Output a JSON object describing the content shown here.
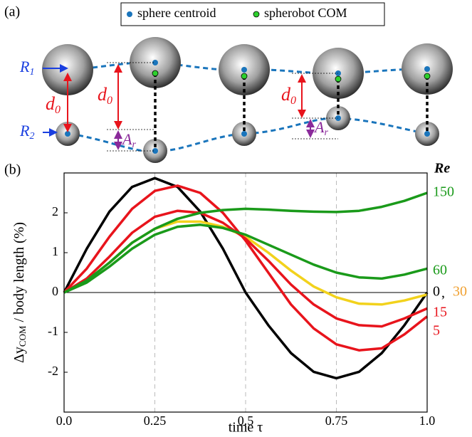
{
  "diagram": {
    "panel_label": "(a)",
    "legend": [
      "sphere centroid",
      "spherobot COM"
    ],
    "r1": {
      "text": "R",
      "sub": "1"
    },
    "r2": {
      "text": "R",
      "sub": "2"
    },
    "d0_left": {
      "text": "d",
      "sub": "0"
    },
    "d0_mid": {
      "text": "d",
      "sub": "0"
    },
    "d0_right": {
      "text": "d",
      "sub": "0"
    },
    "ar_left": {
      "text": "A",
      "sub": "r"
    },
    "ar_right": {
      "text": "A",
      "sub": "r"
    }
  },
  "chart_data": {
    "type": "line",
    "panel_label": "(b)",
    "x_label": "time  τ",
    "y_label": {
      "main": "Δy",
      "sub": "COM",
      "rest": " / body length (%)"
    },
    "legend_title": "Re",
    "label_separator": ",",
    "x": [
      0,
      0.0625,
      0.125,
      0.1875,
      0.25,
      0.3125,
      0.375,
      0.4375,
      0.5,
      0.5625,
      0.625,
      0.6875,
      0.75,
      0.8125,
      0.875,
      0.9375,
      1
    ],
    "series": [
      {
        "name": "0",
        "color": "#000000",
        "values": [
          0,
          1.1,
          2.03,
          2.65,
          2.87,
          2.65,
          2.03,
          1.1,
          0,
          -0.82,
          -1.52,
          -1.99,
          -2.15,
          -1.99,
          -1.52,
          -0.82,
          0
        ]
      },
      {
        "name": "30",
        "color": "#f2d21c",
        "label_color": "#f0a030",
        "values": [
          0,
          0.3,
          0.75,
          1.25,
          1.6,
          1.78,
          1.78,
          1.65,
          1.4,
          1.0,
          0.55,
          0.15,
          -0.12,
          -0.28,
          -0.3,
          -0.2,
          -0.05
        ]
      },
      {
        "name": "15",
        "color": "#e8141c",
        "values": [
          0,
          0.35,
          0.9,
          1.5,
          1.9,
          2.05,
          2.0,
          1.75,
          1.35,
          0.8,
          0.2,
          -0.3,
          -0.65,
          -0.82,
          -0.85,
          -0.65,
          -0.4
        ]
      },
      {
        "name": "5",
        "color": "#e8141c",
        "values": [
          0,
          0.6,
          1.4,
          2.1,
          2.55,
          2.68,
          2.5,
          2.0,
          1.3,
          0.5,
          -0.3,
          -0.9,
          -1.3,
          -1.45,
          -1.4,
          -1.05,
          -0.6
        ]
      },
      {
        "name": "60",
        "color": "#1a9a1a",
        "values": [
          0,
          0.25,
          0.65,
          1.1,
          1.45,
          1.65,
          1.7,
          1.62,
          1.45,
          1.2,
          0.95,
          0.7,
          0.5,
          0.38,
          0.35,
          0.45,
          0.6
        ]
      },
      {
        "name": "150",
        "color": "#1a9a1a",
        "values": [
          0,
          0.3,
          0.75,
          1.25,
          1.6,
          1.85,
          2.0,
          2.07,
          2.1,
          2.08,
          2.05,
          2.03,
          2.02,
          2.05,
          2.15,
          2.3,
          2.5
        ]
      }
    ],
    "xlim": [
      0,
      1
    ],
    "ylim": [
      -3,
      3
    ],
    "xticks": [
      {
        "value": 0,
        "label": "0.0"
      },
      0.25,
      0.5,
      0.75,
      {
        "value": 1,
        "label": "1.0"
      }
    ],
    "yticks": [
      -2,
      -1,
      0,
      1,
      2
    ],
    "grid_x": true
  }
}
